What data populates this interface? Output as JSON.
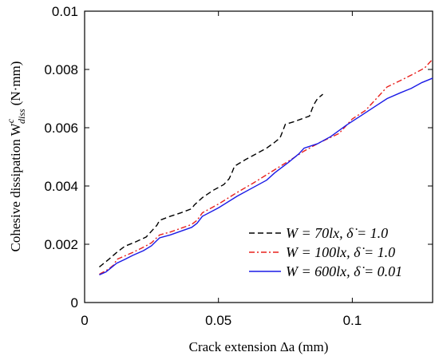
{
  "chart_data": {
    "type": "line",
    "title": "",
    "xlabel": "Crack extension Δa (mm)",
    "ylabel": "Cohesive dissipation W",
    "ylabel_sup": "c",
    "ylabel_sub": "diss",
    "ylabel_unit": "(N·mm)",
    "xlim": [
      0,
      0.13
    ],
    "ylim": [
      0,
      0.01
    ],
    "xticks": [
      0,
      0.05,
      0.1
    ],
    "xtick_labels": [
      "0",
      "0.05",
      "0.1"
    ],
    "yticks": [
      0,
      0.002,
      0.004,
      0.006,
      0.008,
      0.01
    ],
    "ytick_labels": [
      "0",
      "0.002",
      "0.004",
      "0.006",
      "0.008",
      "0.01"
    ],
    "grid": false,
    "legend_position": "bottom-right",
    "series": [
      {
        "name": "W = 70l_x, δ̇ = 1.0",
        "legend_label": "W = 70lx, δ̇ = 1.0",
        "color": "#000000",
        "dash": "dashed",
        "points": [
          [
            0.0055,
            0.00122
          ],
          [
            0.009,
            0.00148
          ],
          [
            0.012,
            0.00172
          ],
          [
            0.015,
            0.00193
          ],
          [
            0.019,
            0.00208
          ],
          [
            0.023,
            0.00225
          ],
          [
            0.025,
            0.00245
          ],
          [
            0.027,
            0.00265
          ],
          [
            0.028,
            0.00282
          ],
          [
            0.032,
            0.00296
          ],
          [
            0.036,
            0.00308
          ],
          [
            0.04,
            0.00322
          ],
          [
            0.041,
            0.00335
          ],
          [
            0.044,
            0.0036
          ],
          [
            0.048,
            0.00385
          ],
          [
            0.052,
            0.00405
          ],
          [
            0.054,
            0.00425
          ],
          [
            0.055,
            0.00445
          ],
          [
            0.056,
            0.00468
          ],
          [
            0.06,
            0.0049
          ],
          [
            0.064,
            0.0051
          ],
          [
            0.068,
            0.0053
          ],
          [
            0.071,
            0.0055
          ],
          [
            0.073,
            0.00565
          ],
          [
            0.074,
            0.00588
          ],
          [
            0.075,
            0.00612
          ],
          [
            0.078,
            0.0062
          ],
          [
            0.081,
            0.0063
          ],
          [
            0.084,
            0.0064
          ],
          [
            0.085,
            0.00665
          ],
          [
            0.086,
            0.00685
          ],
          [
            0.087,
            0.007
          ],
          [
            0.089,
            0.00715
          ]
        ]
      },
      {
        "name": "W = 100l_x, δ̇ = 1.0",
        "legend_label": "W = 100lx, δ̇ = 1.0",
        "color": "#e8201c",
        "dash": "dashdot",
        "points": [
          [
            0.0055,
            0.00097
          ],
          [
            0.009,
            0.00115
          ],
          [
            0.011,
            0.0013
          ],
          [
            0.012,
            0.00148
          ],
          [
            0.015,
            0.0016
          ],
          [
            0.018,
            0.00172
          ],
          [
            0.022,
            0.0019
          ],
          [
            0.025,
            0.00205
          ],
          [
            0.028,
            0.00232
          ],
          [
            0.032,
            0.00242
          ],
          [
            0.036,
            0.00255
          ],
          [
            0.04,
            0.00268
          ],
          [
            0.042,
            0.00282
          ],
          [
            0.044,
            0.00308
          ],
          [
            0.05,
            0.00338
          ],
          [
            0.057,
            0.00378
          ],
          [
            0.063,
            0.0041
          ],
          [
            0.07,
            0.0045
          ],
          [
            0.077,
            0.0049
          ],
          [
            0.082,
            0.0052
          ],
          [
            0.088,
            0.0055
          ],
          [
            0.095,
            0.0058
          ],
          [
            0.1,
            0.0063
          ],
          [
            0.105,
            0.0066
          ],
          [
            0.109,
            0.007
          ],
          [
            0.113,
            0.0074
          ],
          [
            0.118,
            0.00762
          ],
          [
            0.123,
            0.00785
          ],
          [
            0.127,
            0.00805
          ],
          [
            0.13,
            0.00835
          ]
        ]
      },
      {
        "name": "W = 600l_x, δ̇ = 0.01",
        "legend_label": "W = 600lx, δ̇ = 0.01",
        "color": "#1a1ae6",
        "dash": "solid",
        "points": [
          [
            0.0055,
            0.00095
          ],
          [
            0.008,
            0.00105
          ],
          [
            0.01,
            0.0012
          ],
          [
            0.012,
            0.00135
          ],
          [
            0.015,
            0.00148
          ],
          [
            0.018,
            0.00162
          ],
          [
            0.022,
            0.00178
          ],
          [
            0.025,
            0.00195
          ],
          [
            0.028,
            0.00222
          ],
          [
            0.032,
            0.00232
          ],
          [
            0.036,
            0.00245
          ],
          [
            0.04,
            0.00258
          ],
          [
            0.042,
            0.00272
          ],
          [
            0.044,
            0.00296
          ],
          [
            0.05,
            0.00325
          ],
          [
            0.057,
            0.00365
          ],
          [
            0.063,
            0.00395
          ],
          [
            0.068,
            0.0042
          ],
          [
            0.071,
            0.00445
          ],
          [
            0.076,
            0.0048
          ],
          [
            0.08,
            0.0051
          ],
          [
            0.082,
            0.0053
          ],
          [
            0.087,
            0.00545
          ],
          [
            0.092,
            0.0057
          ],
          [
            0.098,
            0.0061
          ],
          [
            0.103,
            0.0064
          ],
          [
            0.108,
            0.0067
          ],
          [
            0.113,
            0.007
          ],
          [
            0.118,
            0.0072
          ],
          [
            0.122,
            0.00735
          ],
          [
            0.126,
            0.00755
          ],
          [
            0.13,
            0.0077
          ]
        ]
      }
    ]
  }
}
